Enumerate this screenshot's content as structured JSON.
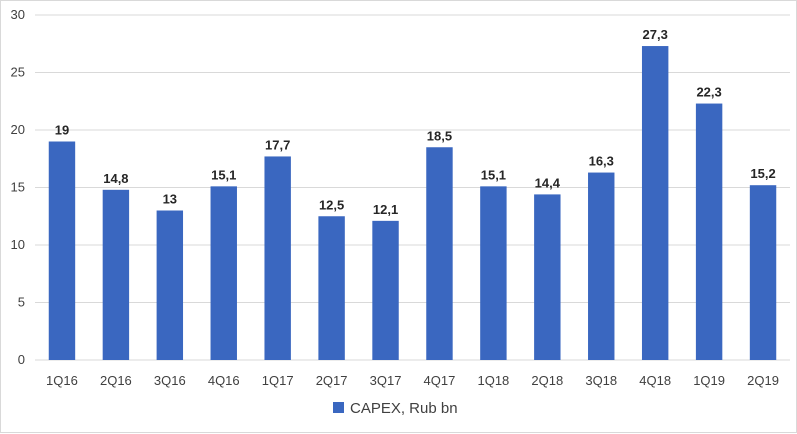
{
  "chart_data": {
    "type": "bar",
    "categories": [
      "1Q16",
      "2Q16",
      "3Q16",
      "4Q16",
      "1Q17",
      "2Q17",
      "3Q17",
      "4Q17",
      "1Q18",
      "2Q18",
      "3Q18",
      "4Q18",
      "1Q19",
      "2Q19"
    ],
    "series": [
      {
        "name": "CAPEX, Rub bn",
        "values": [
          19,
          14.8,
          13,
          15.1,
          17.7,
          12.5,
          12.1,
          18.5,
          15.1,
          14.4,
          16.3,
          27.3,
          22.3,
          15.2
        ],
        "labels": [
          "19",
          "14,8",
          "13",
          "15,1",
          "17,7",
          "12,5",
          "12,1",
          "18,5",
          "15,1",
          "14,4",
          "16,3",
          "27,3",
          "22,3",
          "15,2"
        ],
        "color": "#3a67c0"
      }
    ],
    "ylim": [
      0,
      30
    ],
    "yticks": [
      "0",
      "5",
      "10",
      "15",
      "20",
      "25",
      "30"
    ],
    "grid": true,
    "legend_position": "bottom",
    "gridline_color": "#d9d9d9"
  }
}
